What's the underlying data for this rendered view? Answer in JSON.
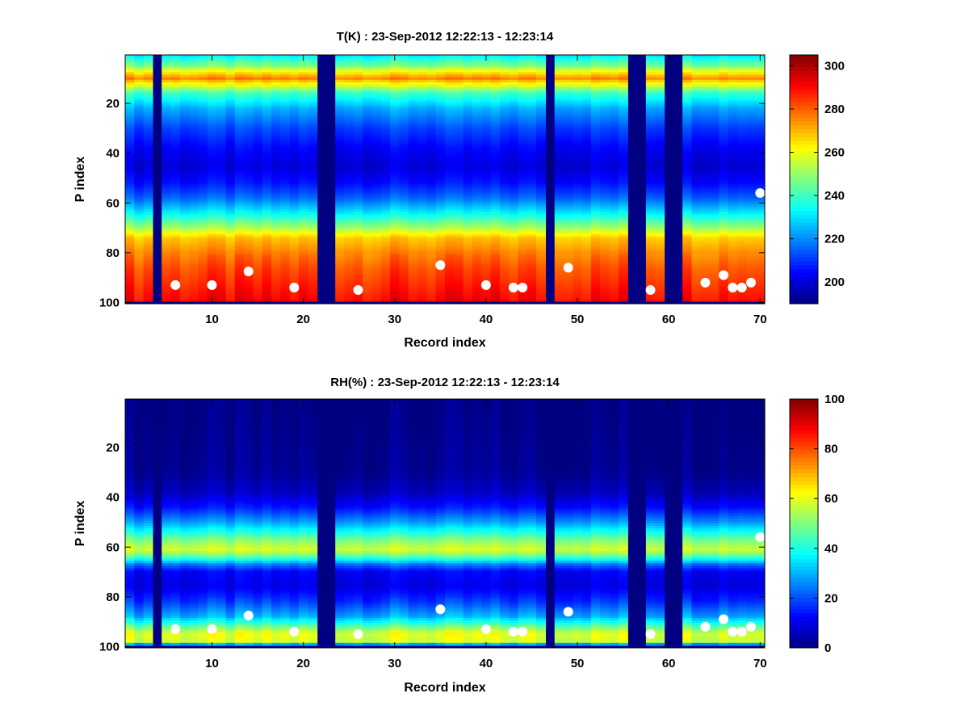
{
  "chart_data": [
    {
      "type": "heatmap",
      "title": "T(K) : 23-Sep-2012 12:22:13 - 12:23:14",
      "xlabel": "Record index",
      "ylabel": "P index",
      "xlim": [
        0.5,
        70.5
      ],
      "ylim": [
        0.5,
        100.5
      ],
      "y_reversed": true,
      "x_ticks": [
        10,
        20,
        30,
        40,
        50,
        60,
        70
      ],
      "x_tick_labels": [
        "10",
        "20",
        "30",
        "40",
        "50",
        "60",
        "70"
      ],
      "y_ticks": [
        20,
        40,
        60,
        80,
        100
      ],
      "y_tick_labels": [
        "20",
        "40",
        "60",
        "80",
        "100"
      ],
      "colormap": "jet",
      "clim": [
        190,
        305
      ],
      "colorbar_ticks": [
        200,
        220,
        240,
        260,
        280,
        300
      ],
      "colorbar_tick_labels": [
        "200",
        "220",
        "240",
        "260",
        "280",
        "300"
      ],
      "missing_columns": [
        4,
        22,
        23,
        47,
        56,
        57,
        60,
        61
      ],
      "profile_p": [
        1,
        5,
        8,
        10,
        12,
        16,
        22,
        30,
        38,
        45,
        52,
        58,
        64,
        70,
        74,
        80,
        86,
        92,
        98,
        100
      ],
      "profile_values": [
        232,
        248,
        266,
        276,
        262,
        240,
        224,
        212,
        204,
        200,
        206,
        216,
        232,
        252,
        268,
        276,
        282,
        286,
        290,
        292
      ],
      "white_markers": [
        {
          "x": 6,
          "y": 93
        },
        {
          "x": 10,
          "y": 93
        },
        {
          "x": 14,
          "y": 87.5
        },
        {
          "x": 19,
          "y": 94
        },
        {
          "x": 26,
          "y": 95
        },
        {
          "x": 35,
          "y": 85
        },
        {
          "x": 40,
          "y": 93
        },
        {
          "x": 43,
          "y": 94
        },
        {
          "x": 44,
          "y": 94
        },
        {
          "x": 49,
          "y": 86
        },
        {
          "x": 58,
          "y": 95
        },
        {
          "x": 64,
          "y": 92
        },
        {
          "x": 66,
          "y": 89
        },
        {
          "x": 67,
          "y": 94
        },
        {
          "x": 68,
          "y": 94
        },
        {
          "x": 69,
          "y": 92
        },
        {
          "x": 70,
          "y": 56
        }
      ]
    },
    {
      "type": "heatmap",
      "title": "RH(%) : 23-Sep-2012 12:22:13 - 12:23:14",
      "xlabel": "Record index",
      "ylabel": "P index",
      "xlim": [
        0.5,
        70.5
      ],
      "ylim": [
        0.5,
        100.5
      ],
      "y_reversed": true,
      "x_ticks": [
        10,
        20,
        30,
        40,
        50,
        60,
        70
      ],
      "x_tick_labels": [
        "10",
        "20",
        "30",
        "40",
        "50",
        "60",
        "70"
      ],
      "y_ticks": [
        20,
        40,
        60,
        80,
        100
      ],
      "y_tick_labels": [
        "20",
        "40",
        "60",
        "80",
        "100"
      ],
      "colormap": "jet",
      "clim": [
        0,
        100
      ],
      "colorbar_ticks": [
        0,
        20,
        40,
        60,
        80,
        100
      ],
      "colorbar_tick_labels": [
        "0",
        "20",
        "40",
        "60",
        "80",
        "100"
      ],
      "missing_columns": [
        4,
        22,
        23,
        47,
        56,
        57,
        60,
        61
      ],
      "profile_p": [
        1,
        30,
        38,
        44,
        50,
        54,
        58,
        61,
        64,
        67,
        70,
        76,
        82,
        88,
        92,
        95,
        98,
        100
      ],
      "profile_values": [
        0,
        2,
        6,
        14,
        28,
        40,
        52,
        58,
        46,
        24,
        12,
        10,
        18,
        30,
        48,
        60,
        58,
        0
      ],
      "white_markers": [
        {
          "x": 6,
          "y": 93
        },
        {
          "x": 10,
          "y": 93
        },
        {
          "x": 14,
          "y": 87.5
        },
        {
          "x": 19,
          "y": 94
        },
        {
          "x": 26,
          "y": 95
        },
        {
          "x": 35,
          "y": 85
        },
        {
          "x": 40,
          "y": 93
        },
        {
          "x": 43,
          "y": 94
        },
        {
          "x": 44,
          "y": 94
        },
        {
          "x": 49,
          "y": 86
        },
        {
          "x": 58,
          "y": 95
        },
        {
          "x": 64,
          "y": 92
        },
        {
          "x": 66,
          "y": 89
        },
        {
          "x": 67,
          "y": 94
        },
        {
          "x": 68,
          "y": 94
        },
        {
          "x": 69,
          "y": 92
        },
        {
          "x": 70,
          "y": 56
        }
      ]
    }
  ]
}
